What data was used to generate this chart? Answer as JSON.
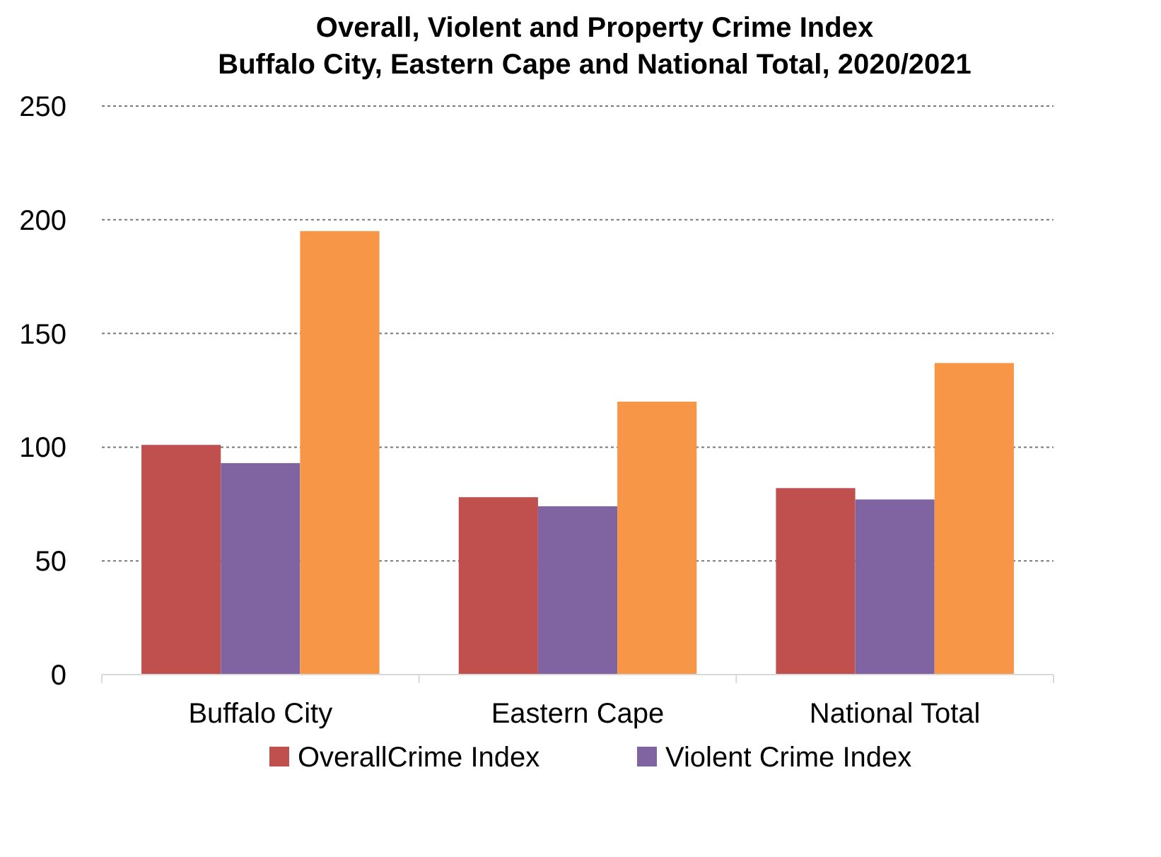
{
  "chart_data": {
    "type": "bar",
    "title": "Overall, Violent and Property Crime Index\nBuffalo City, Eastern Cape and National Total, 2020/2021",
    "categories": [
      "Buffalo City",
      "Eastern Cape",
      "National Total"
    ],
    "series": [
      {
        "name": "OverallCrime Index",
        "color": "#c0504d",
        "values": [
          101,
          78,
          82
        ]
      },
      {
        "name": "Violent Crime Index",
        "color": "#8064a2",
        "values": [
          93,
          74,
          77
        ]
      },
      {
        "color": "#f79646",
        "values": [
          195,
          120,
          137
        ]
      }
    ],
    "ylim": [
      0,
      250
    ],
    "yticks": [
      0,
      50,
      100,
      150,
      200,
      250
    ],
    "grid": "y",
    "legend": "bottom"
  }
}
